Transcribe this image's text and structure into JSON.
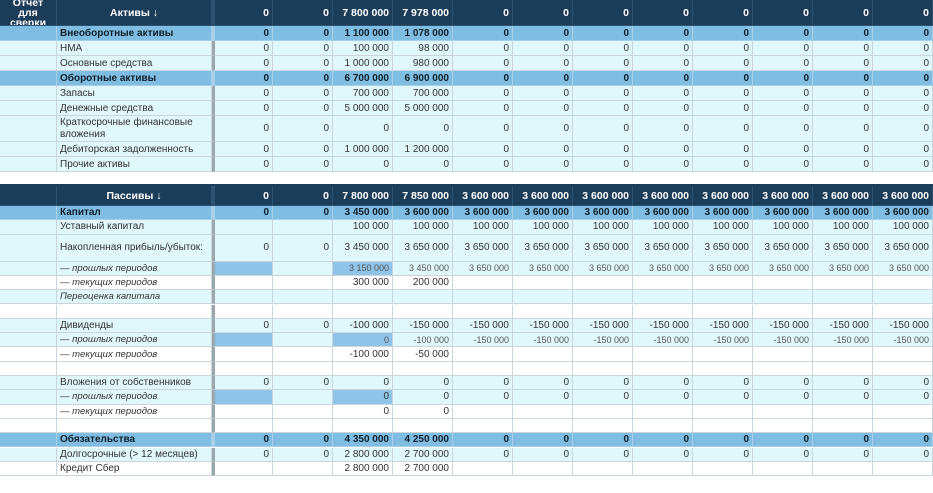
{
  "corner_title": "Отчёт для сверки",
  "assets": {
    "header": {
      "label": "Активы ↓",
      "values": [
        "0",
        "0",
        "7 800 000",
        "7 978 000",
        "0",
        "0",
        "0",
        "0",
        "0",
        "0",
        "0",
        "0"
      ]
    },
    "rows": [
      {
        "label": "Внеоборотные активы",
        "style": "sec",
        "values": [
          "0",
          "0",
          "1 100 000",
          "1 078 000",
          "0",
          "0",
          "0",
          "0",
          "0",
          "0",
          "0",
          "0"
        ]
      },
      {
        "label": "НМА",
        "style": "alt",
        "values": [
          "0",
          "0",
          "100 000",
          "98 000",
          "0",
          "0",
          "0",
          "0",
          "0",
          "0",
          "0",
          "0"
        ]
      },
      {
        "label": "Основные средства",
        "style": "alt",
        "values": [
          "0",
          "0",
          "1 000 000",
          "980 000",
          "0",
          "0",
          "0",
          "0",
          "0",
          "0",
          "0",
          "0"
        ]
      },
      {
        "label": "Оборотные активы",
        "style": "sec",
        "values": [
          "0",
          "0",
          "6 700 000",
          "6 900 000",
          "0",
          "0",
          "0",
          "0",
          "0",
          "0",
          "0",
          "0"
        ]
      },
      {
        "label": "Запасы",
        "style": "alt",
        "values": [
          "0",
          "0",
          "700 000",
          "700 000",
          "0",
          "0",
          "0",
          "0",
          "0",
          "0",
          "0",
          "0"
        ]
      },
      {
        "label": "Денежные средства",
        "style": "alt",
        "values": [
          "0",
          "0",
          "5 000 000",
          "5 000 000",
          "0",
          "0",
          "0",
          "0",
          "0",
          "0",
          "0",
          "0"
        ]
      },
      {
        "label": "Краткосрочные финансовые вложения",
        "style": "alt",
        "tall": true,
        "values": [
          "0",
          "0",
          "0",
          "0",
          "0",
          "0",
          "0",
          "0",
          "0",
          "0",
          "0",
          "0"
        ]
      },
      {
        "label": "Дебиторская задолженность",
        "style": "alt",
        "values": [
          "0",
          "0",
          "1 000 000",
          "1 200 000",
          "0",
          "0",
          "0",
          "0",
          "0",
          "0",
          "0",
          "0"
        ]
      },
      {
        "label": "Прочие активы",
        "style": "alt",
        "values": [
          "0",
          "0",
          "0",
          "0",
          "0",
          "0",
          "0",
          "0",
          "0",
          "0",
          "0",
          "0"
        ]
      }
    ]
  },
  "liabilities": {
    "header": {
      "label": "Пассивы ↓",
      "values": [
        "0",
        "0",
        "7 800 000",
        "7 850 000",
        "3 600 000",
        "3 600 000",
        "3 600 000",
        "3 600 000",
        "3 600 000",
        "3 600 000",
        "3 600 000",
        "3 600 000"
      ]
    },
    "rows": [
      {
        "label": "Капитал",
        "style": "sec",
        "values": [
          "0",
          "0",
          "3 450 000",
          "3 600 000",
          "3 600 000",
          "3 600 000",
          "3 600 000",
          "3 600 000",
          "3 600 000",
          "3 600 000",
          "3 600 000",
          "3 600 000"
        ]
      },
      {
        "label": "Уставный капитал",
        "style": "alt",
        "values": [
          "",
          "",
          "100 000",
          "100 000",
          "100 000",
          "100 000",
          "100 000",
          "100 000",
          "100 000",
          "100 000",
          "100 000",
          "100 000"
        ]
      },
      {
        "label": "Накопленная прибыль/убыток:",
        "style": "alt",
        "tall": true,
        "values": [
          "0",
          "0",
          "3 450 000",
          "3 650 000",
          "3 650 000",
          "3 650 000",
          "3 650 000",
          "3 650 000",
          "3 650 000",
          "3 650 000",
          "3 650 000",
          "3 650 000"
        ]
      },
      {
        "label": "— прошлых периодов",
        "style": "alt",
        "italic": true,
        "small": true,
        "blue": [
          0,
          2
        ],
        "values": [
          "",
          "",
          "3 150 000",
          "3 450 000",
          "3 650 000",
          "3 650 000",
          "3 650 000",
          "3 650 000",
          "3 650 000",
          "3 650 000",
          "3 650 000",
          "3 650 000"
        ]
      },
      {
        "label": "— текущих периодов",
        "style": "wht",
        "italic": true,
        "values": [
          "",
          "",
          "300 000",
          "200 000",
          "",
          "",
          "",
          "",
          "",
          "",
          "",
          ""
        ]
      },
      {
        "label": "Переоценка капитала",
        "style": "alt",
        "italic": true,
        "values": [
          "",
          "",
          "",
          "",
          "",
          "",
          "",
          "",
          "",
          "",
          "",
          ""
        ]
      },
      {
        "label": "",
        "style": "wht",
        "values": [
          "",
          "",
          "",
          "",
          "",
          "",
          "",
          "",
          "",
          "",
          "",
          ""
        ]
      },
      {
        "label": "Дивиденды",
        "style": "alt",
        "values": [
          "0",
          "0",
          "-100 000",
          "-150 000",
          "-150 000",
          "-150 000",
          "-150 000",
          "-150 000",
          "-150 000",
          "-150 000",
          "-150 000",
          "-150 000"
        ]
      },
      {
        "label": "— прошлых периодов",
        "style": "alt",
        "italic": true,
        "small": true,
        "blue": [
          0,
          2
        ],
        "values": [
          "",
          "",
          "0",
          "-100 000",
          "-150 000",
          "-150 000",
          "-150 000",
          "-150 000",
          "-150 000",
          "-150 000",
          "-150 000",
          "-150 000"
        ]
      },
      {
        "label": "— текущих периодов",
        "style": "wht",
        "italic": true,
        "values": [
          "",
          "",
          "-100 000",
          "-50 000",
          "",
          "",
          "",
          "",
          "",
          "",
          "",
          ""
        ]
      },
      {
        "label": "",
        "style": "wht",
        "values": [
          "",
          "",
          "",
          "",
          "",
          "",
          "",
          "",
          "",
          "",
          "",
          ""
        ]
      },
      {
        "label": "Вложения от собственников",
        "style": "alt",
        "values": [
          "0",
          "0",
          "0",
          "0",
          "0",
          "0",
          "0",
          "0",
          "0",
          "0",
          "0",
          "0"
        ]
      },
      {
        "label": "— прошлых периодов",
        "style": "alt",
        "italic": true,
        "blue": [
          0,
          2
        ],
        "values": [
          "",
          "",
          "0",
          "0",
          "0",
          "0",
          "0",
          "0",
          "0",
          "0",
          "0",
          "0"
        ]
      },
      {
        "label": "— текущих периодов",
        "style": "wht",
        "italic": true,
        "values": [
          "",
          "",
          "0",
          "0",
          "",
          "",
          "",
          "",
          "",
          "",
          "",
          ""
        ]
      },
      {
        "label": "",
        "style": "wht",
        "values": [
          "",
          "",
          "",
          "",
          "",
          "",
          "",
          "",
          "",
          "",
          "",
          ""
        ]
      },
      {
        "label": "Обязательства",
        "style": "sec",
        "values": [
          "0",
          "0",
          "4 350 000",
          "4 250 000",
          "0",
          "0",
          "0",
          "0",
          "0",
          "0",
          "0",
          "0"
        ]
      },
      {
        "label": "Долгосрочные (> 12 месяцев)",
        "style": "alt",
        "values": [
          "0",
          "0",
          "2 800 000",
          "2 700 000",
          "0",
          "0",
          "0",
          "0",
          "0",
          "0",
          "0",
          "0"
        ]
      },
      {
        "label": "Кредит Сбер",
        "style": "wht",
        "values": [
          "",
          "",
          "2 800 000",
          "2 700 000",
          "",
          "",
          "",
          "",
          "",
          "",
          "",
          ""
        ]
      }
    ]
  }
}
